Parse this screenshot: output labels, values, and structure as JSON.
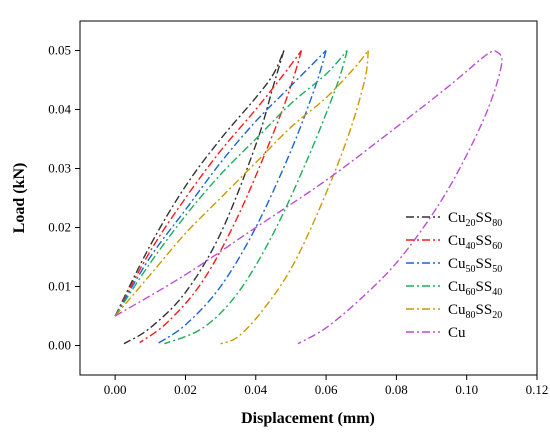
{
  "chart_data": {
    "type": "line",
    "xlabel": "Displacement (mm)",
    "ylabel": "Load (kN)",
    "xlim": [
      -0.01,
      0.12
    ],
    "ylim": [
      -0.005,
      0.055
    ],
    "x_ticks": [
      "0.00",
      "0.02",
      "0.04",
      "0.06",
      "0.08",
      "0.10",
      "0.12"
    ],
    "y_ticks": [
      "0.00",
      "0.01",
      "0.02",
      "0.03",
      "0.04",
      "0.05"
    ],
    "grid": false,
    "legend_position": "right-bottom",
    "series": [
      {
        "legend": {
          "base1": "Cu",
          "sub1": "20",
          "base2": "SS",
          "sub2": "80"
        },
        "color": "#333333",
        "dash": "8,3,2,3",
        "loading": [
          [
            0.0,
            0.005
          ],
          [
            0.01,
            0.017
          ],
          [
            0.02,
            0.027
          ],
          [
            0.03,
            0.035
          ],
          [
            0.04,
            0.042
          ],
          [
            0.045,
            0.046
          ],
          [
            0.048,
            0.05
          ]
        ],
        "unloading": [
          [
            0.048,
            0.05
          ],
          [
            0.045,
            0.044
          ],
          [
            0.04,
            0.034
          ],
          [
            0.03,
            0.019
          ],
          [
            0.02,
            0.009
          ],
          [
            0.01,
            0.003
          ],
          [
            0.0025,
            0.0003
          ]
        ]
      },
      {
        "legend": {
          "base1": "Cu",
          "sub1": "40",
          "base2": "SS",
          "sub2": "60"
        },
        "color": "#ff1a1a",
        "dash": "8,3,2,3",
        "loading": [
          [
            0.0,
            0.005
          ],
          [
            0.01,
            0.016
          ],
          [
            0.02,
            0.025
          ],
          [
            0.03,
            0.033
          ],
          [
            0.04,
            0.04
          ],
          [
            0.048,
            0.046
          ],
          [
            0.053,
            0.05
          ]
        ],
        "unloading": [
          [
            0.053,
            0.05
          ],
          [
            0.05,
            0.044
          ],
          [
            0.045,
            0.036
          ],
          [
            0.035,
            0.022
          ],
          [
            0.025,
            0.011
          ],
          [
            0.015,
            0.004
          ],
          [
            0.007,
            0.0005
          ]
        ]
      },
      {
        "legend": {
          "base1": "Cu",
          "sub1": "50",
          "base2": "SS",
          "sub2": "50"
        },
        "color": "#1a63d6",
        "dash": "8,3,2,3",
        "loading": [
          [
            0.0,
            0.005
          ],
          [
            0.01,
            0.015
          ],
          [
            0.02,
            0.023
          ],
          [
            0.03,
            0.031
          ],
          [
            0.04,
            0.038
          ],
          [
            0.05,
            0.044
          ],
          [
            0.06,
            0.05
          ]
        ],
        "unloading": [
          [
            0.06,
            0.05
          ],
          [
            0.057,
            0.044
          ],
          [
            0.05,
            0.033
          ],
          [
            0.04,
            0.02
          ],
          [
            0.03,
            0.01
          ],
          [
            0.02,
            0.0035
          ],
          [
            0.012,
            0.0003
          ]
        ]
      },
      {
        "legend": {
          "base1": "Cu",
          "sub1": "60",
          "base2": "SS",
          "sub2": "40"
        },
        "color": "#1fae55",
        "dash": "8,3,2,3",
        "loading": [
          [
            0.0,
            0.005
          ],
          [
            0.01,
            0.014
          ],
          [
            0.02,
            0.022
          ],
          [
            0.03,
            0.029
          ],
          [
            0.04,
            0.035
          ],
          [
            0.05,
            0.041
          ],
          [
            0.06,
            0.046
          ],
          [
            0.066,
            0.05
          ]
        ],
        "unloading": [
          [
            0.066,
            0.05
          ],
          [
            0.063,
            0.044
          ],
          [
            0.055,
            0.032
          ],
          [
            0.045,
            0.019
          ],
          [
            0.035,
            0.009
          ],
          [
            0.025,
            0.003
          ],
          [
            0.014,
            0.0003
          ]
        ]
      },
      {
        "legend": {
          "base1": "Cu",
          "sub1": "80",
          "base2": "SS",
          "sub2": "20"
        },
        "color": "#cc9900",
        "dash": "8,3,2,3",
        "loading": [
          [
            0.0,
            0.005
          ],
          [
            0.01,
            0.012
          ],
          [
            0.02,
            0.019
          ],
          [
            0.03,
            0.025
          ],
          [
            0.04,
            0.031
          ],
          [
            0.05,
            0.037
          ],
          [
            0.06,
            0.042
          ],
          [
            0.068,
            0.047
          ],
          [
            0.072,
            0.05
          ]
        ],
        "unloading": [
          [
            0.072,
            0.05
          ],
          [
            0.071,
            0.045
          ],
          [
            0.066,
            0.035
          ],
          [
            0.058,
            0.023
          ],
          [
            0.05,
            0.013
          ],
          [
            0.042,
            0.006
          ],
          [
            0.035,
            0.0015
          ],
          [
            0.03,
            0.0003
          ]
        ]
      },
      {
        "legend": {
          "base1": "Cu",
          "sub1": "",
          "base2": "",
          "sub2": ""
        },
        "color": "#b94fd6",
        "dash": "8,3,2,3",
        "loading": [
          [
            0.0,
            0.005
          ],
          [
            0.02,
            0.012
          ],
          [
            0.04,
            0.02
          ],
          [
            0.06,
            0.028
          ],
          [
            0.08,
            0.037
          ],
          [
            0.095,
            0.044
          ],
          [
            0.105,
            0.049
          ],
          [
            0.108,
            0.05
          ]
        ],
        "unloading": [
          [
            0.108,
            0.05
          ],
          [
            0.11,
            0.048
          ],
          [
            0.106,
            0.04
          ],
          [
            0.098,
            0.03
          ],
          [
            0.09,
            0.022
          ],
          [
            0.08,
            0.014
          ],
          [
            0.07,
            0.008
          ],
          [
            0.06,
            0.003
          ],
          [
            0.052,
            0.0003
          ]
        ]
      }
    ]
  }
}
